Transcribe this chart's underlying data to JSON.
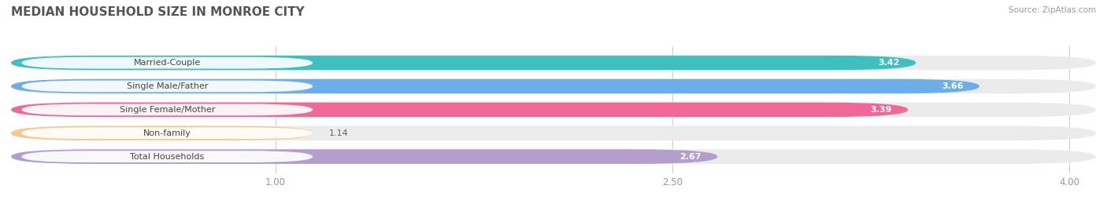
{
  "title": "MEDIAN HOUSEHOLD SIZE IN MONROE CITY",
  "source": "Source: ZipAtlas.com",
  "categories": [
    "Married-Couple",
    "Single Male/Father",
    "Single Female/Mother",
    "Non-family",
    "Total Households"
  ],
  "values": [
    3.42,
    3.66,
    3.39,
    1.14,
    2.67
  ],
  "bar_colors": [
    "#40bfbf",
    "#6baee8",
    "#f06898",
    "#f5c990",
    "#b49ece"
  ],
  "bar_bg_color": "#ebebeb",
  "xlim_min": 0.0,
  "xlim_max": 4.1,
  "xticks": [
    1.0,
    2.5,
    4.0
  ],
  "xtick_labels": [
    "1.00",
    "2.50",
    "4.00"
  ],
  "title_fontsize": 11,
  "label_fontsize": 8,
  "value_fontsize": 8,
  "background_color": "#ffffff",
  "bar_height": 0.62,
  "bar_gap": 0.38
}
